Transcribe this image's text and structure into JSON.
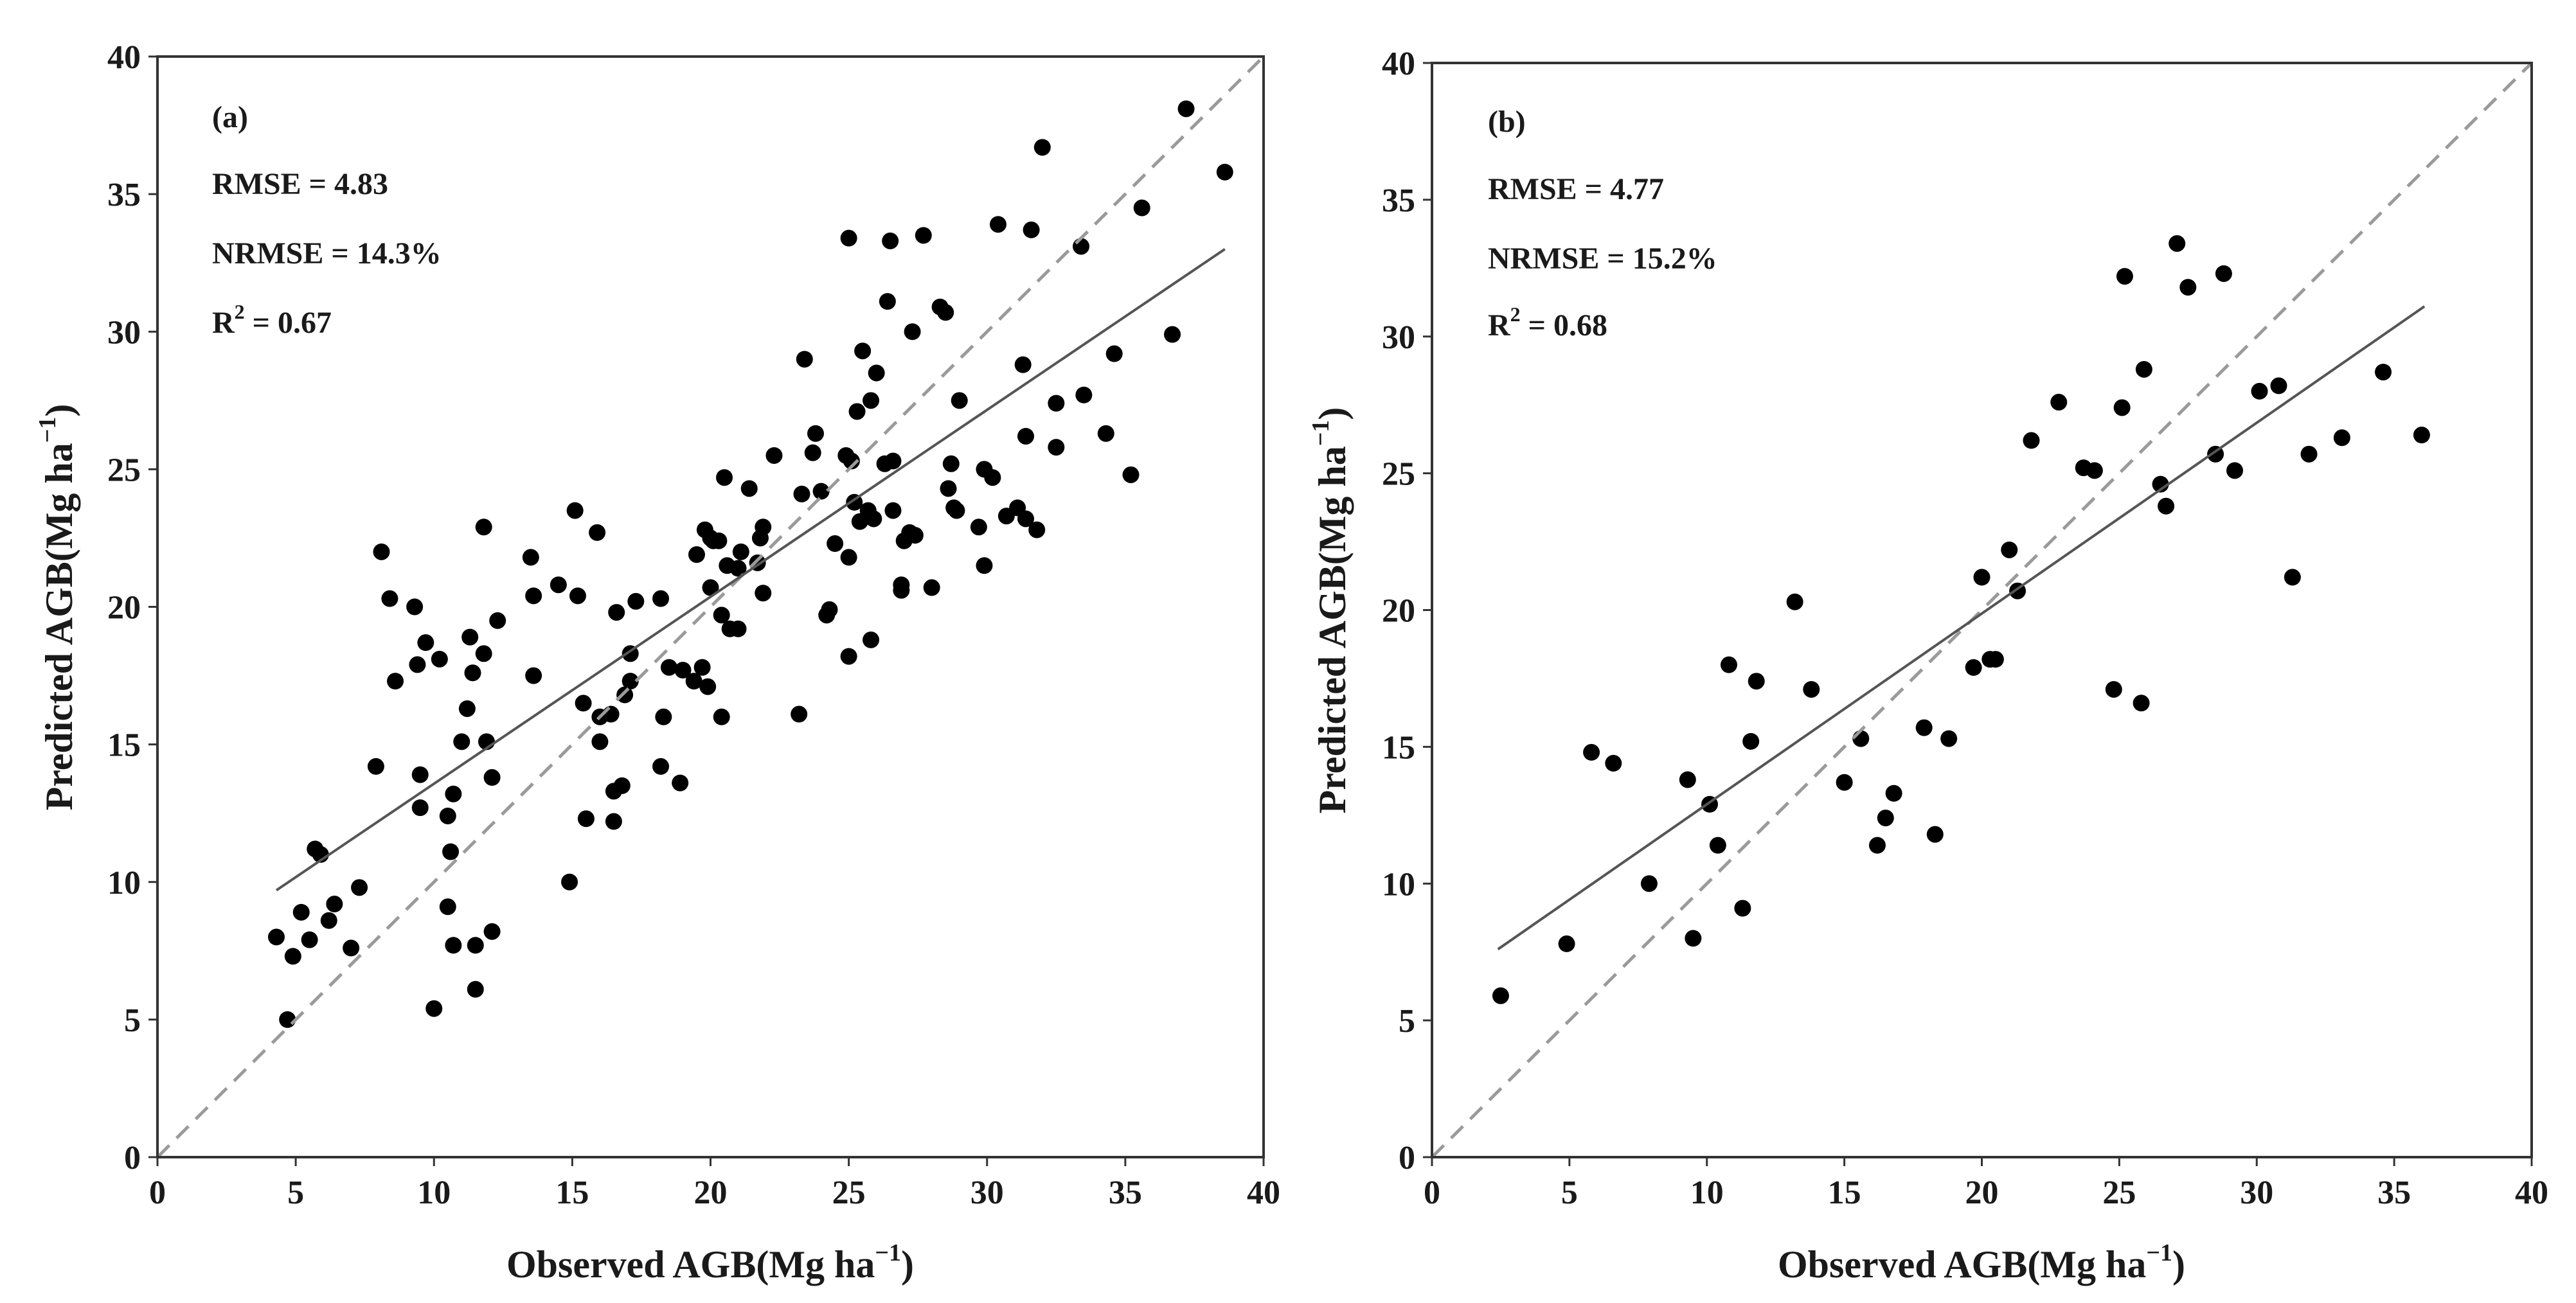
{
  "figure": {
    "panels_count": 2
  },
  "chart_data": [
    {
      "type": "scatter",
      "panel_label": "(a)",
      "stats": {
        "rmse": "RMSE = 4.83",
        "nrmse": "NRMSE = 14.3%",
        "r2_prefix": "R",
        "r2_sup": "2",
        "r2_suffix": " = 0.67"
      },
      "xlabel": {
        "main": "Observed AGB(Mg ha",
        "sup": "−1",
        "close": ")"
      },
      "ylabel": {
        "main": "Predicted AGB(Mg ha",
        "sup": "−1",
        "close": ")"
      },
      "xlim": [
        0,
        40
      ],
      "ylim": [
        0,
        40
      ],
      "xticks": [
        0,
        5,
        10,
        15,
        20,
        25,
        30,
        35,
        40
      ],
      "yticks": [
        0,
        5,
        10,
        15,
        20,
        25,
        30,
        35,
        40
      ],
      "one_to_one_line": {
        "from": [
          0,
          0
        ],
        "to": [
          40,
          40
        ],
        "style": "dashed",
        "color": "#9a9a9a"
      },
      "fit_line": {
        "from": [
          4.3,
          9.7
        ],
        "to": [
          38.6,
          33.0
        ],
        "color": "#555555"
      },
      "marker_color": "#000000",
      "points": [
        [
          4.3,
          8.0
        ],
        [
          4.7,
          5.0
        ],
        [
          4.9,
          7.3
        ],
        [
          5.2,
          8.9
        ],
        [
          5.5,
          7.9
        ],
        [
          5.7,
          11.2
        ],
        [
          5.9,
          11.0
        ],
        [
          6.2,
          8.6
        ],
        [
          6.4,
          9.2
        ],
        [
          7.0,
          7.6
        ],
        [
          7.3,
          9.8
        ],
        [
          7.9,
          14.2
        ],
        [
          8.1,
          22.0
        ],
        [
          8.4,
          20.3
        ],
        [
          8.6,
          17.3
        ],
        [
          9.3,
          20.0
        ],
        [
          9.4,
          17.9
        ],
        [
          9.5,
          12.7
        ],
        [
          9.5,
          13.9
        ],
        [
          9.7,
          18.7
        ],
        [
          10.0,
          5.4
        ],
        [
          10.2,
          18.1
        ],
        [
          10.5,
          9.1
        ],
        [
          10.5,
          12.4
        ],
        [
          10.6,
          11.1
        ],
        [
          10.7,
          13.2
        ],
        [
          10.7,
          7.7
        ],
        [
          11.0,
          15.1
        ],
        [
          11.2,
          16.3
        ],
        [
          11.3,
          18.9
        ],
        [
          11.4,
          17.6
        ],
        [
          11.5,
          7.7
        ],
        [
          11.5,
          6.1
        ],
        [
          11.8,
          22.9
        ],
        [
          11.8,
          18.3
        ],
        [
          11.9,
          15.1
        ],
        [
          12.1,
          13.8
        ],
        [
          12.1,
          8.2
        ],
        [
          12.3,
          19.5
        ],
        [
          13.5,
          21.8
        ],
        [
          13.6,
          17.5
        ],
        [
          13.6,
          20.4
        ],
        [
          14.5,
          20.8
        ],
        [
          14.9,
          10.0
        ],
        [
          15.1,
          23.5
        ],
        [
          15.2,
          20.4
        ],
        [
          15.4,
          16.5
        ],
        [
          15.5,
          12.3
        ],
        [
          15.9,
          22.7
        ],
        [
          16.0,
          15.1
        ],
        [
          16.0,
          16.0
        ],
        [
          16.4,
          16.1
        ],
        [
          16.5,
          13.3
        ],
        [
          16.5,
          12.2
        ],
        [
          16.6,
          19.8
        ],
        [
          16.8,
          13.5
        ],
        [
          16.9,
          16.8
        ],
        [
          17.1,
          17.3
        ],
        [
          17.1,
          18.3
        ],
        [
          17.3,
          20.2
        ],
        [
          18.2,
          20.3
        ],
        [
          18.2,
          14.2
        ],
        [
          18.3,
          16.0
        ],
        [
          18.5,
          17.8
        ],
        [
          18.9,
          13.6
        ],
        [
          19.0,
          17.7
        ],
        [
          19.4,
          17.3
        ],
        [
          19.5,
          21.9
        ],
        [
          19.7,
          17.8
        ],
        [
          19.8,
          22.8
        ],
        [
          19.9,
          17.1
        ],
        [
          20.0,
          22.5
        ],
        [
          20.0,
          20.7
        ],
        [
          20.1,
          22.4
        ],
        [
          20.3,
          22.4
        ],
        [
          20.4,
          19.7
        ],
        [
          20.4,
          16.0
        ],
        [
          20.5,
          24.7
        ],
        [
          20.6,
          21.5
        ],
        [
          20.7,
          19.2
        ],
        [
          21.0,
          21.4
        ],
        [
          21.0,
          19.2
        ],
        [
          21.1,
          22.0
        ],
        [
          21.4,
          24.3
        ],
        [
          21.7,
          21.6
        ],
        [
          21.8,
          22.5
        ],
        [
          21.9,
          22.9
        ],
        [
          21.9,
          20.5
        ],
        [
          22.3,
          25.5
        ],
        [
          23.2,
          16.1
        ],
        [
          23.3,
          24.1
        ],
        [
          23.4,
          29.0
        ],
        [
          23.7,
          25.6
        ],
        [
          23.8,
          26.3
        ],
        [
          24.0,
          24.2
        ],
        [
          24.2,
          19.7
        ],
        [
          24.3,
          19.9
        ],
        [
          24.5,
          22.3
        ],
        [
          24.9,
          25.5
        ],
        [
          25.0,
          33.4
        ],
        [
          25.0,
          21.8
        ],
        [
          25.0,
          18.2
        ],
        [
          25.1,
          25.3
        ],
        [
          25.2,
          23.8
        ],
        [
          25.3,
          27.1
        ],
        [
          25.4,
          23.1
        ],
        [
          25.5,
          29.3
        ],
        [
          25.7,
          23.5
        ],
        [
          25.8,
          27.5
        ],
        [
          25.8,
          18.8
        ],
        [
          25.9,
          23.2
        ],
        [
          26.0,
          28.5
        ],
        [
          26.3,
          25.2
        ],
        [
          26.4,
          31.1
        ],
        [
          26.5,
          33.3
        ],
        [
          26.6,
          25.3
        ],
        [
          26.6,
          23.5
        ],
        [
          26.9,
          20.6
        ],
        [
          26.9,
          20.8
        ],
        [
          27.0,
          22.4
        ],
        [
          27.2,
          22.7
        ],
        [
          27.3,
          30.0
        ],
        [
          27.4,
          22.6
        ],
        [
          27.7,
          33.5
        ],
        [
          28.0,
          20.7
        ],
        [
          28.3,
          30.9
        ],
        [
          28.5,
          30.7
        ],
        [
          28.6,
          24.3
        ],
        [
          28.7,
          25.2
        ],
        [
          28.8,
          23.6
        ],
        [
          28.9,
          23.5
        ],
        [
          29.0,
          27.5
        ],
        [
          29.7,
          22.9
        ],
        [
          29.9,
          21.5
        ],
        [
          29.9,
          25.0
        ],
        [
          30.2,
          24.7
        ],
        [
          30.4,
          33.9
        ],
        [
          30.7,
          23.3
        ],
        [
          31.1,
          23.6
        ],
        [
          31.3,
          28.8
        ],
        [
          31.4,
          23.2
        ],
        [
          31.4,
          26.2
        ],
        [
          31.6,
          33.7
        ],
        [
          31.8,
          22.8
        ],
        [
          32.0,
          36.7
        ],
        [
          32.5,
          25.8
        ],
        [
          32.5,
          27.4
        ],
        [
          33.4,
          33.1
        ],
        [
          33.5,
          27.7
        ],
        [
          34.3,
          26.3
        ],
        [
          34.6,
          29.2
        ],
        [
          35.2,
          24.8
        ],
        [
          35.6,
          34.5
        ],
        [
          36.7,
          29.9
        ],
        [
          37.2,
          38.1
        ],
        [
          38.6,
          35.8
        ]
      ]
    },
    {
      "type": "scatter",
      "panel_label": "(b)",
      "stats": {
        "rmse": "RMSE = 4.77",
        "nrmse": "NRMSE = 15.2%",
        "r2_prefix": "R",
        "r2_sup": "2",
        "r2_suffix": " = 0.68"
      },
      "xlabel": {
        "main": "Observed AGB(Mg ha",
        "sup": "−1",
        "close": ")"
      },
      "ylabel": {
        "main": "Predicted AGB(Mg ha",
        "sup": "−1",
        "close": ")"
      },
      "xlim": [
        0,
        40
      ],
      "ylim": [
        0,
        40
      ],
      "xticks": [
        0,
        5,
        10,
        15,
        20,
        25,
        30,
        35,
        40
      ],
      "yticks": [
        0,
        5,
        10,
        15,
        20,
        25,
        30,
        35,
        40
      ],
      "one_to_one_line": {
        "from": [
          0,
          0
        ],
        "to": [
          40,
          40
        ],
        "style": "dashed",
        "color": "#9a9a9a"
      },
      "fit_line": {
        "from": [
          2.4,
          7.6
        ],
        "to": [
          36.1,
          31.1
        ],
        "color": "#555555"
      },
      "marker_color": "#000000",
      "points": [
        [
          2.5,
          5.9
        ],
        [
          4.9,
          7.8
        ],
        [
          5.8,
          14.8
        ],
        [
          6.6,
          14.4
        ],
        [
          7.9,
          10.0
        ],
        [
          9.3,
          13.8
        ],
        [
          9.5,
          8.0
        ],
        [
          10.1,
          12.9
        ],
        [
          10.4,
          11.4
        ],
        [
          10.8,
          18.0
        ],
        [
          11.3,
          9.1
        ],
        [
          11.6,
          15.2
        ],
        [
          11.8,
          17.4
        ],
        [
          13.2,
          20.3
        ],
        [
          13.8,
          17.1
        ],
        [
          15.0,
          13.7
        ],
        [
          15.6,
          15.3
        ],
        [
          16.2,
          11.4
        ],
        [
          16.5,
          12.4
        ],
        [
          16.8,
          13.3
        ],
        [
          17.9,
          15.7
        ],
        [
          18.3,
          11.8
        ],
        [
          18.8,
          15.3
        ],
        [
          19.7,
          17.9
        ],
        [
          20.0,
          21.2
        ],
        [
          20.3,
          18.2
        ],
        [
          20.5,
          18.2
        ],
        [
          21.0,
          22.2
        ],
        [
          21.3,
          20.7
        ],
        [
          21.8,
          26.2
        ],
        [
          22.8,
          27.6
        ],
        [
          23.7,
          25.2
        ],
        [
          24.1,
          25.1
        ],
        [
          24.8,
          17.1
        ],
        [
          25.1,
          27.4
        ],
        [
          25.2,
          32.2
        ],
        [
          25.8,
          16.6
        ],
        [
          25.9,
          28.8
        ],
        [
          26.5,
          24.6
        ],
        [
          26.7,
          23.8
        ],
        [
          27.1,
          33.4
        ],
        [
          27.5,
          31.8
        ],
        [
          28.5,
          25.7
        ],
        [
          28.8,
          32.3
        ],
        [
          29.2,
          25.1
        ],
        [
          30.1,
          28.0
        ],
        [
          30.8,
          28.2
        ],
        [
          31.3,
          21.2
        ],
        [
          31.9,
          25.7
        ],
        [
          33.1,
          26.3
        ],
        [
          34.6,
          28.7
        ],
        [
          36.0,
          26.4
        ]
      ]
    }
  ]
}
